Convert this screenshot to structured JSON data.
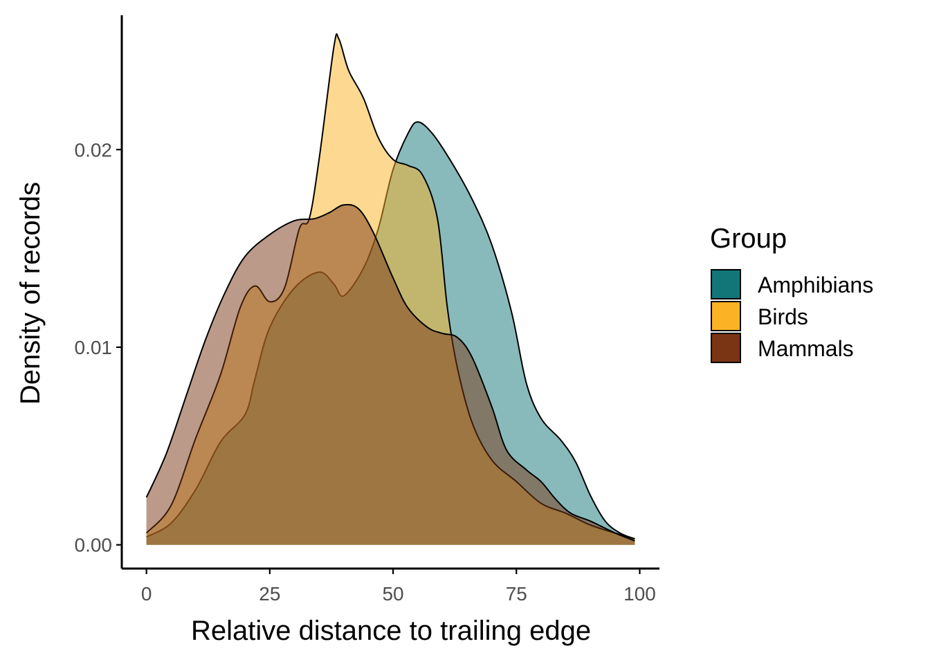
{
  "chart_data": {
    "type": "area",
    "subtype": "density",
    "xlabel": "Relative distance to trailing edge",
    "ylabel": "Density of records",
    "xlim": [
      -5,
      104
    ],
    "ylim": [
      -0.0012,
      0.0268
    ],
    "x_ticks": [
      0,
      25,
      50,
      75,
      100
    ],
    "x_tick_labels": [
      "0",
      "25",
      "50",
      "75",
      "100"
    ],
    "y_ticks": [
      0.0,
      0.01,
      0.02
    ],
    "y_tick_labels": [
      "0.00",
      "0.01",
      "0.02"
    ],
    "grid": false,
    "legend": {
      "title": "Group",
      "position": "right"
    },
    "fill_opacity": 0.5,
    "series": [
      {
        "name": "Amphibians",
        "color": "#127678",
        "points": [
          [
            0,
            0.0004
          ],
          [
            5,
            0.0011
          ],
          [
            10,
            0.0028
          ],
          [
            15,
            0.0052
          ],
          [
            20,
            0.0066
          ],
          [
            22,
            0.0084
          ],
          [
            25,
            0.011
          ],
          [
            30,
            0.013
          ],
          [
            35,
            0.0138
          ],
          [
            38,
            0.0132
          ],
          [
            40,
            0.0126
          ],
          [
            44,
            0.014
          ],
          [
            47,
            0.016
          ],
          [
            50,
            0.019
          ],
          [
            53,
            0.0208
          ],
          [
            55,
            0.0214
          ],
          [
            58,
            0.0208
          ],
          [
            62,
            0.0193
          ],
          [
            66,
            0.0175
          ],
          [
            70,
            0.0152
          ],
          [
            74,
            0.0118
          ],
          [
            77,
            0.0082
          ],
          [
            80,
            0.0064
          ],
          [
            84,
            0.0053
          ],
          [
            87,
            0.0042
          ],
          [
            90,
            0.0025
          ],
          [
            93,
            0.0012
          ],
          [
            96,
            0.0006
          ],
          [
            99,
            0.0003
          ]
        ]
      },
      {
        "name": "Birds",
        "color": "#fbb224",
        "points": [
          [
            0,
            0.0006
          ],
          [
            5,
            0.002
          ],
          [
            10,
            0.0054
          ],
          [
            15,
            0.0086
          ],
          [
            19,
            0.012
          ],
          [
            22,
            0.0131
          ],
          [
            25,
            0.0123
          ],
          [
            28,
            0.013
          ],
          [
            31,
            0.016
          ],
          [
            33,
            0.0165
          ],
          [
            35,
            0.0195
          ],
          [
            38,
            0.0252
          ],
          [
            39,
            0.0256
          ],
          [
            41,
            0.024
          ],
          [
            44,
            0.0226
          ],
          [
            47,
            0.0206
          ],
          [
            50,
            0.0195
          ],
          [
            53,
            0.0192
          ],
          [
            56,
            0.0187
          ],
          [
            59,
            0.0165
          ],
          [
            61,
            0.012
          ],
          [
            63,
            0.009
          ],
          [
            66,
            0.0062
          ],
          [
            70,
            0.0043
          ],
          [
            75,
            0.0032
          ],
          [
            80,
            0.0021
          ],
          [
            85,
            0.0016
          ],
          [
            90,
            0.001
          ],
          [
            95,
            0.0006
          ],
          [
            99,
            0.0003
          ]
        ]
      },
      {
        "name": "Mammals",
        "color": "#7a3514",
        "points": [
          [
            0,
            0.0024
          ],
          [
            4,
            0.0046
          ],
          [
            8,
            0.0075
          ],
          [
            12,
            0.0104
          ],
          [
            16,
            0.0128
          ],
          [
            20,
            0.0146
          ],
          [
            25,
            0.0157
          ],
          [
            30,
            0.0164
          ],
          [
            34,
            0.0165
          ],
          [
            37,
            0.0168
          ],
          [
            40,
            0.0172
          ],
          [
            43,
            0.017
          ],
          [
            46,
            0.0158
          ],
          [
            50,
            0.0135
          ],
          [
            53,
            0.012
          ],
          [
            57,
            0.011
          ],
          [
            60,
            0.0107
          ],
          [
            63,
            0.0105
          ],
          [
            66,
            0.0095
          ],
          [
            70,
            0.007
          ],
          [
            73,
            0.0048
          ],
          [
            77,
            0.0038
          ],
          [
            80,
            0.0032
          ],
          [
            83,
            0.0023
          ],
          [
            86,
            0.0016
          ],
          [
            90,
            0.0012
          ],
          [
            95,
            0.0006
          ],
          [
            99,
            0.0002
          ]
        ]
      }
    ]
  }
}
